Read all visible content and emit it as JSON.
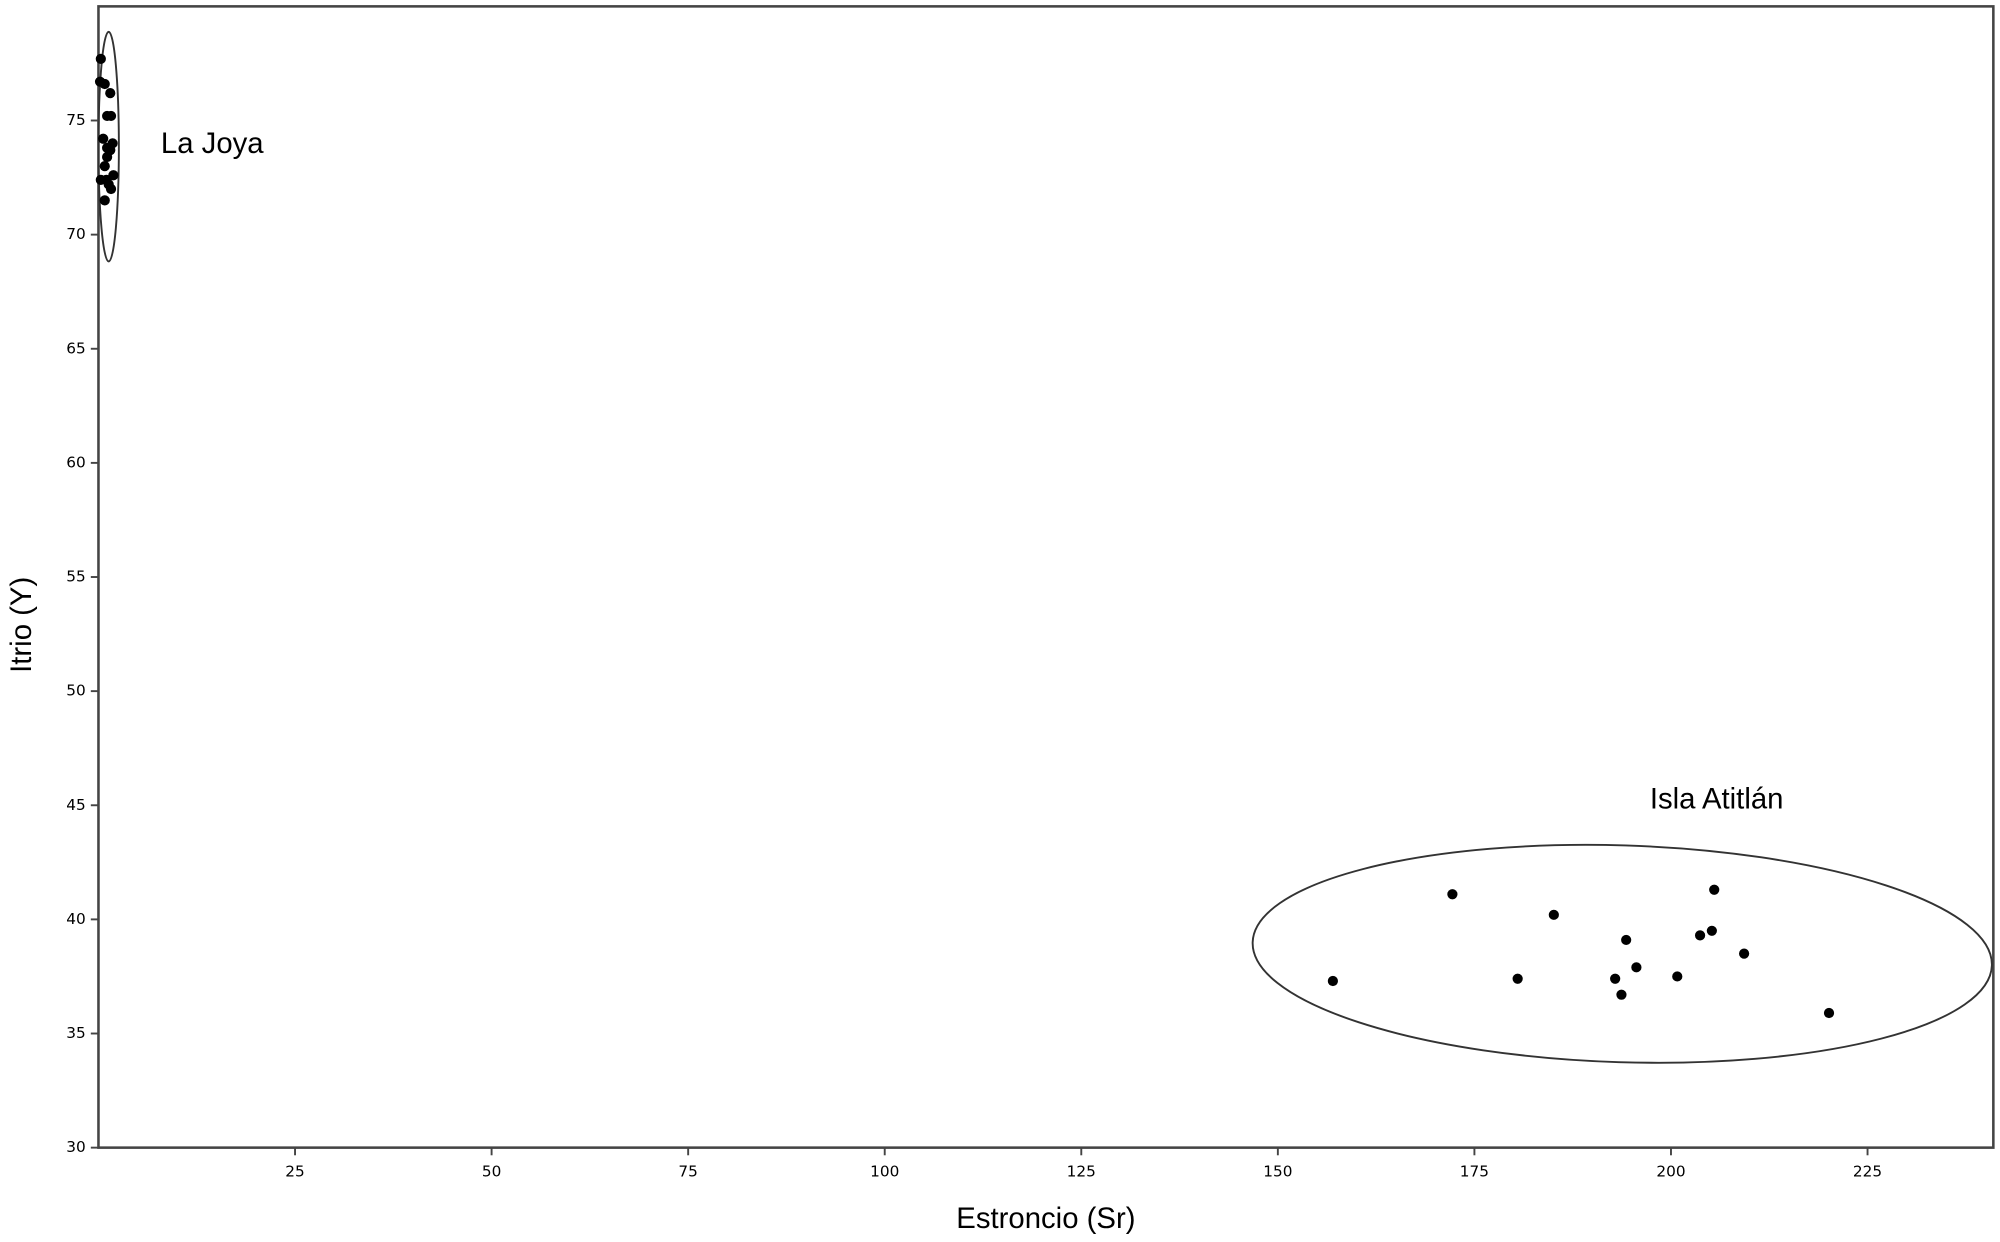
{
  "chart_data": {
    "type": "scatter",
    "x_label": "Estroncio (Sr)",
    "y_label": "Itrio (Y)",
    "xlim": [
      0,
      241
    ],
    "ylim": [
      30,
      80
    ],
    "xticks": [
      25,
      50,
      75,
      100,
      125,
      150,
      175,
      200,
      225
    ],
    "yticks": [
      30,
      35,
      40,
      45,
      50,
      55,
      60,
      65,
      70,
      75
    ],
    "grid": false,
    "series": [
      {
        "name": "La Joya",
        "color": "#000000",
        "x": [
          0.3,
          0.2,
          0.8,
          1.5,
          1.1,
          1.6,
          0.6,
          1.8,
          1.1,
          1.5,
          1.1,
          0.8,
          1.9,
          0.3,
          1.0,
          1.3,
          1.6,
          0.8
        ],
        "values": [
          77.7,
          76.7,
          76.6,
          76.2,
          75.2,
          75.2,
          74.2,
          74.0,
          73.8,
          73.7,
          73.4,
          73.0,
          72.6,
          72.4,
          72.4,
          72.2,
          72.0,
          71.5
        ]
      },
      {
        "name": "Isla Atitlán",
        "color": "#000000",
        "x": [
          157.0,
          172.2,
          180.5,
          185.1,
          194.3,
          192.9,
          193.7,
          195.6,
          200.8,
          203.7,
          205.2,
          205.5,
          209.3,
          220.1
        ],
        "values": [
          37.3,
          41.1,
          37.4,
          40.2,
          39.1,
          37.4,
          36.7,
          37.9,
          37.5,
          39.3,
          39.5,
          41.3,
          38.5,
          35.9
        ]
      }
    ]
  }
}
